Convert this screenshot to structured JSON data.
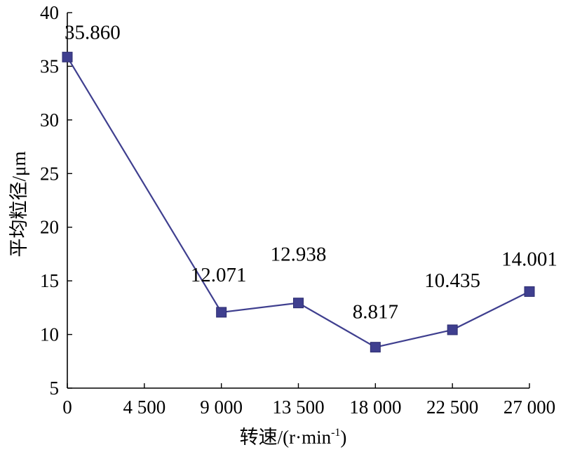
{
  "chart_data": {
    "type": "line",
    "x": [
      0,
      9000,
      13500,
      18000,
      22500,
      27000
    ],
    "series": [
      {
        "values": [
          35.86,
          12.071,
          12.938,
          8.817,
          10.435,
          14.001
        ],
        "labels": [
          "35.860",
          "12.071",
          "12.938",
          "8.817",
          "10.435",
          "14.001"
        ],
        "color": "#3f3f8f"
      }
    ],
    "xlim": [
      0,
      27000
    ],
    "ylim": [
      5,
      40
    ],
    "xticks": [
      0,
      4500,
      9000,
      13500,
      18000,
      22500,
      27000
    ],
    "xtick_labels": [
      "0",
      "4 500",
      "9 000",
      "13 500",
      "18 000",
      "22 500",
      "27 000"
    ],
    "yticks": [
      5,
      10,
      15,
      20,
      25,
      30,
      35,
      40
    ],
    "ytick_labels": [
      "5",
      "10",
      "15",
      "20",
      "25",
      "30",
      "35",
      "40"
    ],
    "xlabel": "转速/(r·min",
    "xlabel_sup": "-1",
    "xlabel_tail": ")",
    "ylabel": "平均粒径/μm",
    "grid": false,
    "legend": "none"
  }
}
